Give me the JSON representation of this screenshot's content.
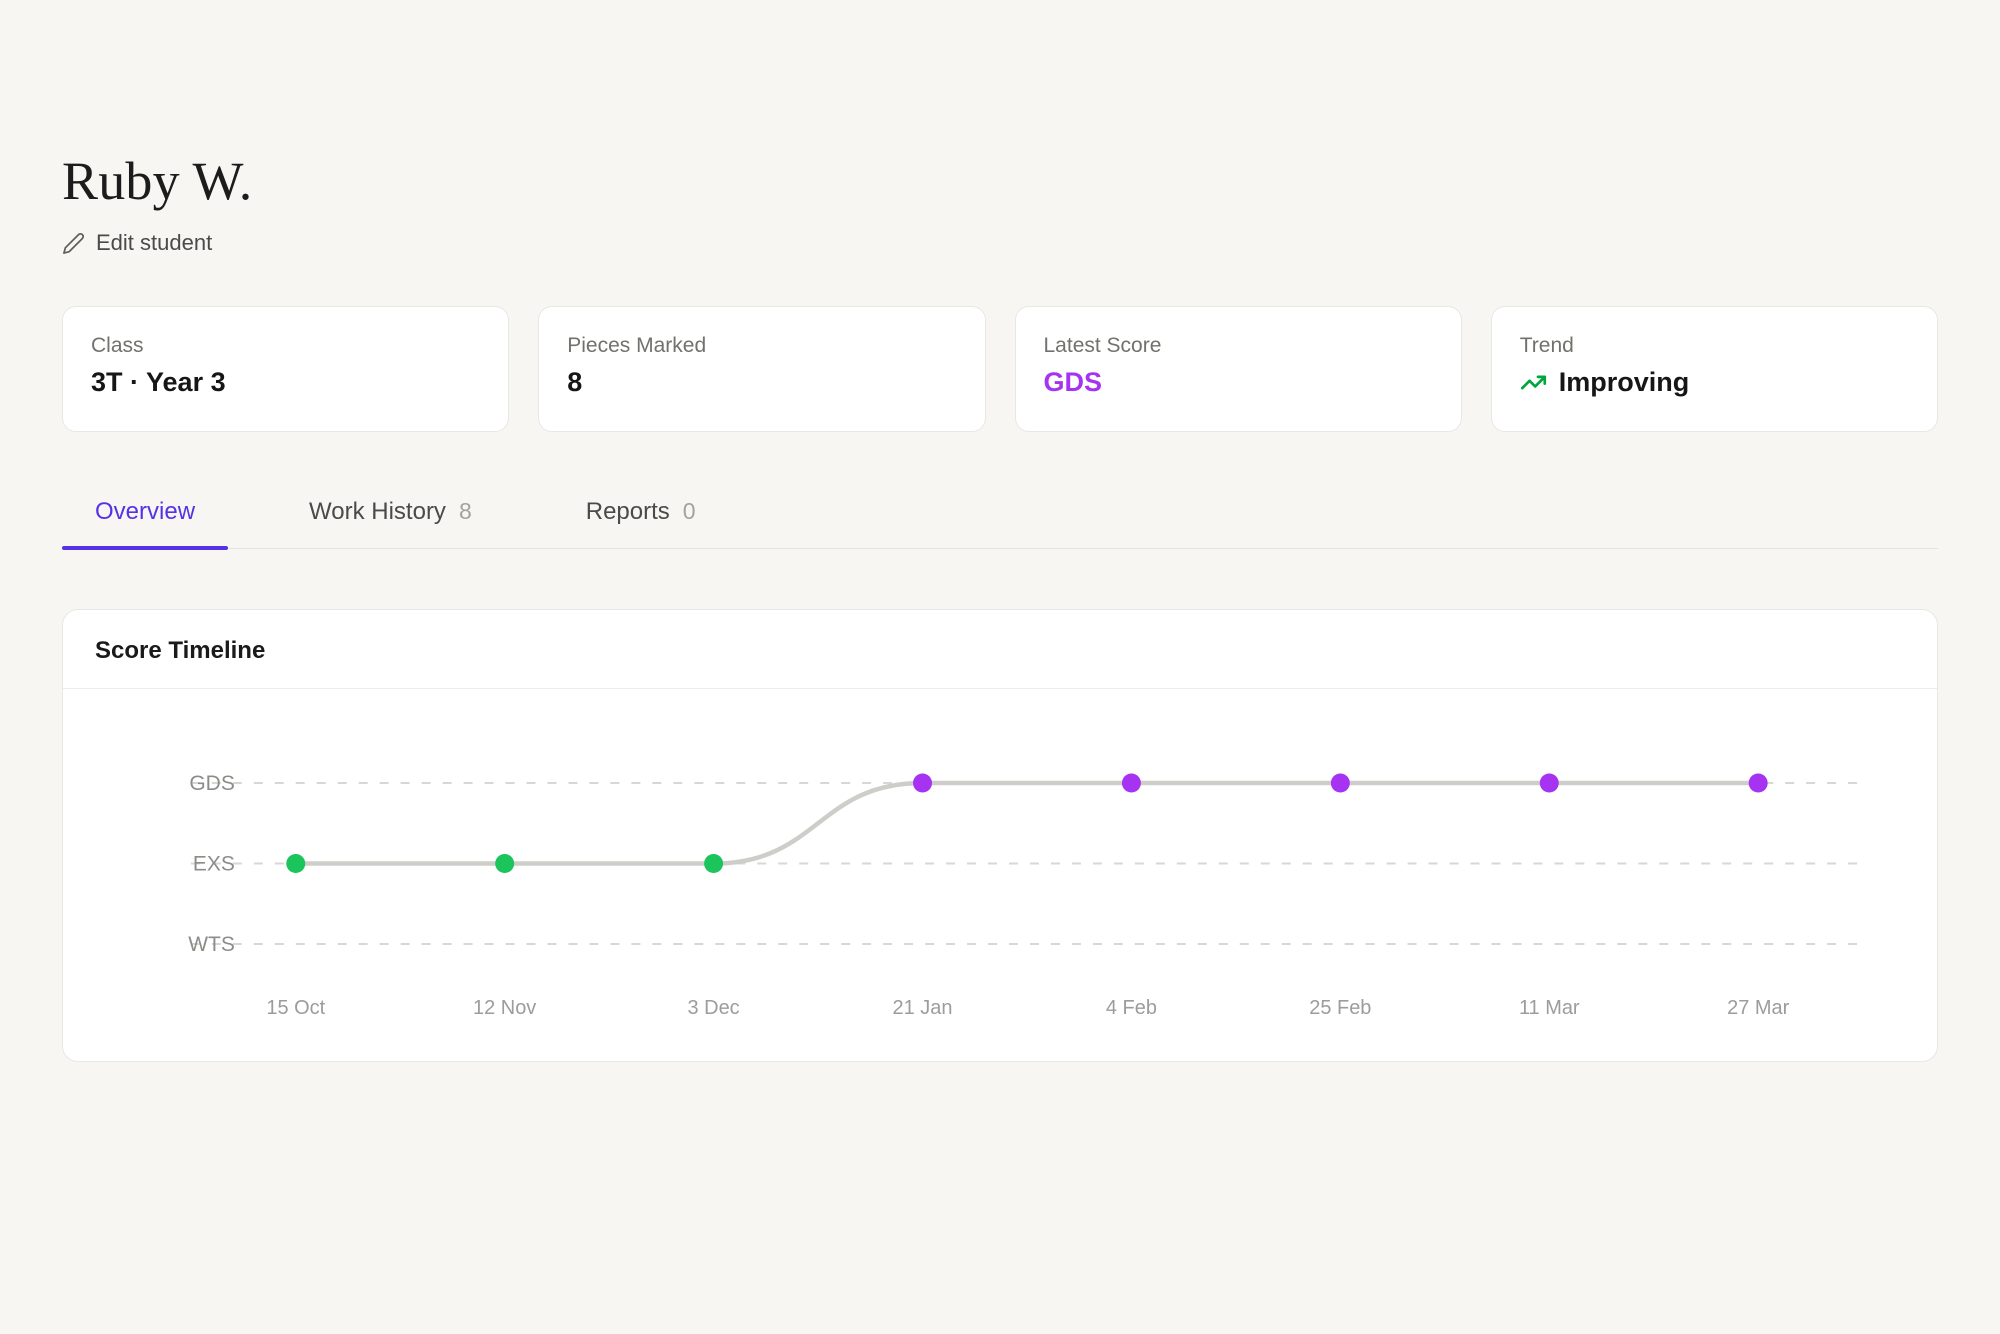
{
  "colors": {
    "background": "#f7f6f3",
    "accent_purple": "#a632f2",
    "accent_indigo": "#5433e4",
    "green_dot": "#1cc45c",
    "trend_green": "#00a63e",
    "line_gray": "#cecdc9",
    "grid_gray": "#d8d7d3"
  },
  "header": {
    "title": "Ruby W.",
    "edit_button": "Edit student"
  },
  "stats": [
    {
      "label": "Class",
      "value": "3T · Year 3"
    },
    {
      "label": "Pieces Marked",
      "value": "8"
    },
    {
      "label": "Latest Score",
      "value": "GDS",
      "value_color": "#a632f2"
    },
    {
      "label": "Trend",
      "value": "Improving",
      "icon": "trending-up-icon",
      "icon_color": "#00a63e"
    }
  ],
  "tabs": [
    {
      "label": "Overview",
      "active": true
    },
    {
      "label": "Work History",
      "count": "8"
    },
    {
      "label": "Reports",
      "count": "0"
    }
  ],
  "timeline_card": {
    "title": "Score Timeline"
  },
  "chart_data": {
    "type": "line",
    "title": "Score Timeline",
    "x": [
      "15 Oct",
      "12 Nov",
      "3 Dec",
      "21 Jan",
      "4 Feb",
      "25 Feb",
      "11 Mar",
      "27 Mar"
    ],
    "y_levels": [
      "GDS",
      "EXS",
      "WTS"
    ],
    "series": [
      {
        "name": "Score",
        "values": [
          "EXS",
          "EXS",
          "EXS",
          "GDS",
          "GDS",
          "GDS",
          "GDS",
          "GDS"
        ]
      }
    ],
    "point_colors": {
      "EXS": "#1cc45c",
      "GDS": "#a632f2"
    },
    "line_color": "#cecdc9",
    "grid": {
      "style": "dashed",
      "color": "#d8d7d3"
    },
    "legend": "none",
    "axis_label_color": "#8c8c89",
    "tick_label_color": "#9c9c99"
  }
}
